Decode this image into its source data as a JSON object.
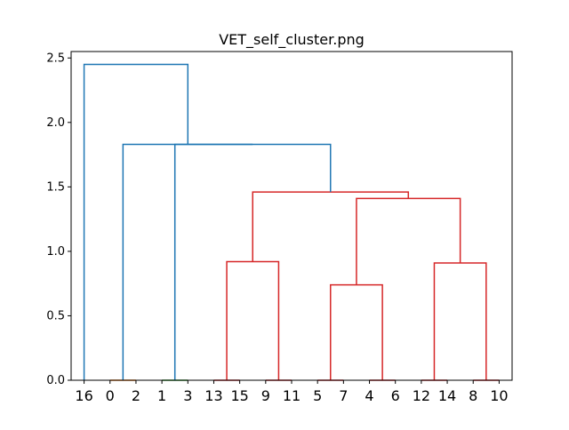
{
  "chart_data": {
    "type": "dendrogram",
    "title": "VET_self_cluster.png",
    "xlabel": "",
    "ylabel": "",
    "ylim": [
      0,
      2.55
    ],
    "yticks": [
      0.0,
      0.5,
      1.0,
      1.5,
      2.0,
      2.5
    ],
    "ytick_labels": [
      "0.0",
      "0.5",
      "1.0",
      "1.5",
      "2.0",
      "2.5"
    ],
    "leaf_order": [
      "16",
      "0",
      "2",
      "1",
      "3",
      "13",
      "15",
      "9",
      "11",
      "5",
      "7",
      "4",
      "6",
      "12",
      "14",
      "8",
      "10"
    ],
    "grid": false,
    "legend": "none",
    "colors": {
      "top": "#1f77b4",
      "cluster_orange": "#ff7f0e",
      "cluster_green": "#2ca02c",
      "cluster_red": "#d62728"
    },
    "merges": [
      {
        "left": "0",
        "right": "2",
        "height": 0.0,
        "color": "cluster_orange"
      },
      {
        "left": "1",
        "right": "3",
        "height": 0.0,
        "color": "cluster_green"
      },
      {
        "left": "13",
        "right": "15",
        "height": 0.0,
        "color": "cluster_red"
      },
      {
        "left": "9",
        "right": "11",
        "height": 0.0,
        "color": "cluster_red"
      },
      {
        "left": "5",
        "right": "7",
        "height": 0.0,
        "color": "cluster_red"
      },
      {
        "left": "4",
        "right": "6",
        "height": 0.0,
        "color": "cluster_red"
      },
      {
        "left": "12",
        "right": "14",
        "height": 0.0,
        "color": "cluster_red"
      },
      {
        "left": "8",
        "right": "10",
        "height": 0.0,
        "color": "cluster_red"
      },
      {
        "left": "5+7",
        "right": "4+6",
        "height": 0.74,
        "color": "cluster_red"
      },
      {
        "left": "12+14",
        "right": "8+10",
        "height": 0.91,
        "color": "cluster_red"
      },
      {
        "left": "13+15",
        "right": "9+11",
        "height": 0.92,
        "color": "cluster_red"
      },
      {
        "left": "5+7+4+6",
        "right": "12+14+8+10",
        "height": 1.41,
        "color": "cluster_red"
      },
      {
        "left": "13+15+9+11",
        "right": "5+7+4+6+12+14+8+10",
        "height": 1.46,
        "color": "cluster_red"
      },
      {
        "left": "0+2",
        "right": "1+3+red",
        "height": 1.83,
        "color": "top"
      },
      {
        "left": "1+3",
        "right": "red",
        "height": 1.83,
        "color": "top"
      },
      {
        "left": "16",
        "right": "rest",
        "height": 2.45,
        "color": "top"
      }
    ]
  }
}
